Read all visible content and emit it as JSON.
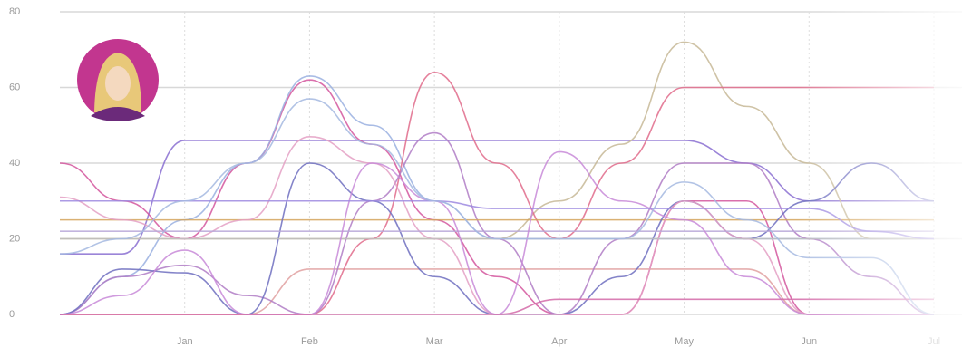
{
  "chart_data": {
    "type": "line",
    "categories": [
      null,
      null,
      "Jan",
      null,
      "Feb",
      null,
      "Mar",
      null,
      "Apr",
      null,
      "May",
      null,
      "Jun",
      null,
      "Jul"
    ],
    "ylim": [
      0,
      80
    ],
    "yticks": [
      0,
      20,
      40,
      60,
      80
    ],
    "grid": true,
    "series": [
      {
        "color": "#8a6fd1",
        "values": [
          16,
          16,
          46,
          46,
          46,
          46,
          46,
          46,
          46,
          46,
          46,
          40,
          30,
          30,
          30
        ]
      },
      {
        "color": "#d4569e",
        "values": [
          40,
          30,
          20,
          40,
          62,
          45,
          25,
          10,
          0,
          0,
          30,
          30,
          0,
          0,
          0
        ]
      },
      {
        "color": "#9ab0e0",
        "values": [
          0,
          10,
          25,
          40,
          63,
          50,
          30,
          20,
          20,
          20,
          20,
          20,
          20,
          20,
          20
        ]
      },
      {
        "color": "#e0a0a0",
        "values": [
          0,
          0,
          0,
          0,
          12,
          12,
          12,
          12,
          12,
          12,
          12,
          12,
          0,
          0,
          0
        ]
      },
      {
        "color": "#c7b896",
        "values": [
          20,
          20,
          20,
          20,
          20,
          20,
          20,
          20,
          30,
          45,
          72,
          55,
          40,
          20,
          20
        ]
      },
      {
        "color": "#e06b8b",
        "values": [
          0,
          0,
          0,
          0,
          0,
          20,
          64,
          40,
          20,
          40,
          60,
          60,
          60,
          60,
          60
        ]
      },
      {
        "color": "#b07cc6",
        "values": [
          0,
          10,
          13,
          5,
          0,
          30,
          48,
          20,
          0,
          20,
          40,
          40,
          20,
          10,
          0
        ]
      },
      {
        "color": "#d4a35a",
        "values": [
          25,
          25,
          25,
          25,
          25,
          25,
          25,
          25,
          25,
          25,
          25,
          25,
          25,
          25,
          25
        ]
      },
      {
        "color": "#6f6fc0",
        "values": [
          0,
          12,
          11,
          0,
          40,
          30,
          10,
          0,
          0,
          10,
          30,
          20,
          30,
          40,
          30
        ]
      },
      {
        "color": "#e4a0c4",
        "values": [
          31,
          25,
          20,
          25,
          47,
          40,
          20,
          0,
          0,
          0,
          30,
          20,
          0,
          0,
          0
        ]
      },
      {
        "color": "#b8a8d8",
        "values": [
          22,
          22,
          22,
          22,
          22,
          22,
          22,
          22,
          22,
          22,
          22,
          22,
          22,
          22,
          22
        ]
      },
      {
        "color": "#c0c0c0",
        "values": [
          20,
          20,
          20,
          20,
          20,
          20,
          20,
          20,
          20,
          20,
          20,
          20,
          20,
          20,
          20
        ]
      },
      {
        "color": "#c88ad8",
        "values": [
          0,
          5,
          17,
          0,
          0,
          40,
          30,
          0,
          43,
          30,
          25,
          10,
          0,
          0,
          0
        ]
      },
      {
        "color": "#9d8ae0",
        "values": [
          30,
          30,
          30,
          30,
          30,
          30,
          30,
          28,
          28,
          28,
          28,
          28,
          28,
          22,
          20
        ]
      },
      {
        "color": "#d46aa8",
        "values": [
          0,
          0,
          0,
          0,
          0,
          0,
          0,
          0,
          4,
          4,
          4,
          4,
          4,
          4,
          4
        ]
      },
      {
        "color": "#a5b8e0",
        "values": [
          16,
          20,
          30,
          40,
          57,
          45,
          30,
          20,
          20,
          20,
          35,
          25,
          15,
          15,
          0
        ]
      }
    ]
  }
}
